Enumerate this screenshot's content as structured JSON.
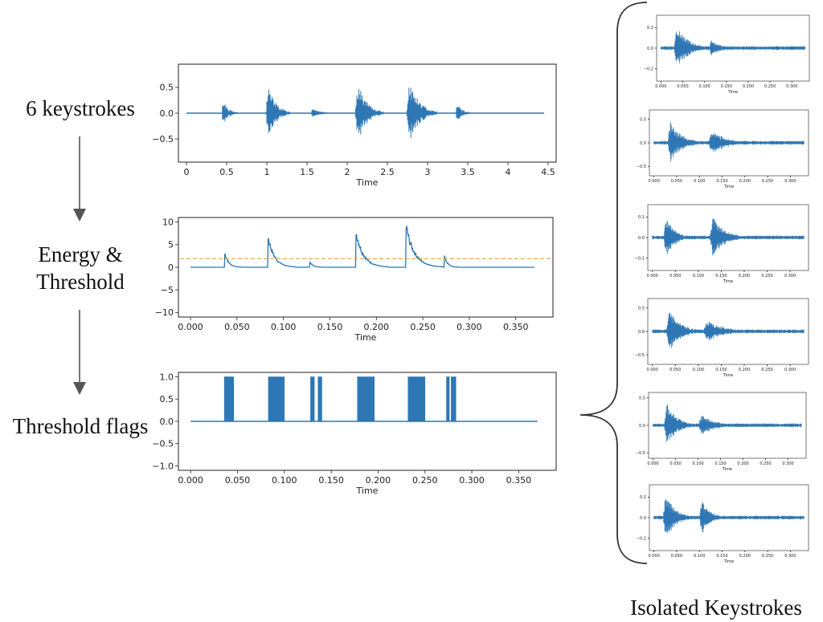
{
  "steps": {
    "keystrokes": "6 keystrokes",
    "energy_line1": "Energy &",
    "energy_line2": "Threshold",
    "flags": "Threshold flags"
  },
  "isolated_title": "Isolated Keystrokes",
  "colors": {
    "signal": "#2f77b4",
    "threshold": "#f0a030",
    "arrow": "#555555",
    "axes": "#222222"
  },
  "chart_data": [
    {
      "type": "line",
      "role": "raw-waveform",
      "xlabel": "Time",
      "xlim": [
        -0.1,
        4.6
      ],
      "ylim": [
        -0.95,
        0.95
      ],
      "xticks": [
        0,
        0.5,
        1,
        1.5,
        2,
        2.5,
        3,
        3.5,
        4,
        4.5
      ],
      "xticklabels": [
        "0",
        "0.5",
        "1",
        "1.5",
        "2",
        "2.5",
        "3",
        "3.5",
        "4",
        "4.5"
      ],
      "yticks": [
        0.5,
        0.0,
        -0.5
      ],
      "yticklabels": [
        "0.5",
        "0.0",
        "−0.5"
      ],
      "signal_span": [
        0,
        4.45
      ],
      "bursts": [
        {
          "start": 0.44,
          "peak": 0.36,
          "width": 0.2
        },
        {
          "start": 0.99,
          "peak": 0.75,
          "width": 0.3
        },
        {
          "start": 1.55,
          "peak": 0.16,
          "width": 0.25
        },
        {
          "start": 2.1,
          "peak": 0.8,
          "width": 0.35
        },
        {
          "start": 2.74,
          "peak": 0.88,
          "width": 0.38
        },
        {
          "start": 3.35,
          "peak": 0.27,
          "width": 0.2
        }
      ]
    },
    {
      "type": "line",
      "role": "energy",
      "xlabel": "Time",
      "xlim": [
        -0.013,
        0.39
      ],
      "ylim": [
        -11,
        11
      ],
      "xticks": [
        0,
        0.05,
        0.1,
        0.15,
        0.2,
        0.25,
        0.3,
        0.35
      ],
      "xticklabels": [
        "0.000",
        "0.050",
        "0.100",
        "0.150",
        "0.200",
        "0.250",
        "0.300",
        "0.350"
      ],
      "yticks": [
        10,
        5,
        0,
        -5,
        -10
      ],
      "yticklabels": [
        "10",
        "5",
        "0",
        "−5",
        "−10"
      ],
      "threshold": 1.9,
      "signal_span": [
        0,
        0.37
      ],
      "bursts": [
        {
          "start": 0.037,
          "peak": 3.5,
          "width": 0.018
        },
        {
          "start": 0.083,
          "peak": 8.3,
          "width": 0.03
        },
        {
          "start": 0.128,
          "peak": 1.5,
          "width": 0.015
        },
        {
          "start": 0.178,
          "peak": 9.1,
          "width": 0.035
        },
        {
          "start": 0.232,
          "peak": 10.2,
          "width": 0.04
        },
        {
          "start": 0.273,
          "peak": 3.0,
          "width": 0.015
        }
      ]
    },
    {
      "type": "line",
      "role": "threshold-flags",
      "xlabel": "Time",
      "xlim": [
        -0.013,
        0.39
      ],
      "ylim": [
        -1.1,
        1.1
      ],
      "xticks": [
        0,
        0.05,
        0.1,
        0.15,
        0.2,
        0.25,
        0.3,
        0.35
      ],
      "xticklabels": [
        "0.000",
        "0.050",
        "0.100",
        "0.150",
        "0.200",
        "0.250",
        "0.300",
        "0.350"
      ],
      "yticks": [
        1.0,
        0.5,
        0.0,
        -0.5,
        -1.0
      ],
      "yticklabels": [
        "1.0",
        "0.5",
        "0.0",
        "−0.5",
        "−1.0"
      ],
      "signal_span": [
        0,
        0.37
      ],
      "flag_intervals": [
        [
          0.036,
          0.046
        ],
        [
          0.083,
          0.1
        ],
        [
          0.128,
          0.132
        ],
        [
          0.136,
          0.14
        ],
        [
          0.178,
          0.196
        ],
        [
          0.232,
          0.25
        ],
        [
          0.273,
          0.276
        ],
        [
          0.278,
          0.283
        ]
      ]
    },
    {
      "type": "line",
      "role": "isolated-keystroke-1",
      "xlabel": "Time",
      "xlim": [
        -0.01,
        0.34
      ],
      "ylim": [
        -0.32,
        0.32
      ],
      "xticks": [
        0,
        0.05,
        0.1,
        0.15,
        0.2,
        0.25,
        0.3
      ],
      "xticklabels": [
        "0.000",
        "0.050",
        "0.100",
        "0.150",
        "0.200",
        "0.250",
        "0.300"
      ],
      "yticks": [
        0.2,
        0.0,
        -0.2
      ],
      "yticklabels": [
        "0.2",
        "0.0",
        "−0.2"
      ],
      "signal_span": [
        0,
        0.33
      ],
      "bursts": [
        {
          "start": 0.03,
          "peak": 0.3,
          "width": 0.08
        },
        {
          "start": 0.11,
          "peak": 0.1,
          "width": 0.07
        }
      ]
    },
    {
      "type": "line",
      "role": "isolated-keystroke-2",
      "xlabel": "Time",
      "xlim": [
        -0.01,
        0.34
      ],
      "ylim": [
        -0.7,
        0.7
      ],
      "xticks": [
        0,
        0.05,
        0.1,
        0.15,
        0.2,
        0.25,
        0.3
      ],
      "xticklabels": [
        "0.000",
        "0.050",
        "0.100",
        "0.150",
        "0.200",
        "0.250",
        "0.300"
      ],
      "yticks": [
        0.5,
        0.0,
        -0.5
      ],
      "yticklabels": [
        "0.5",
        "0.0",
        "−0.5"
      ],
      "signal_span": [
        0,
        0.33
      ],
      "bursts": [
        {
          "start": 0.03,
          "peak": 0.6,
          "width": 0.08
        },
        {
          "start": 0.12,
          "peak": 0.35,
          "width": 0.1
        }
      ]
    },
    {
      "type": "line",
      "role": "isolated-keystroke-3",
      "xlabel": "Time",
      "xlim": [
        -0.01,
        0.34
      ],
      "ylim": [
        -0.16,
        0.16
      ],
      "xticks": [
        0,
        0.05,
        0.1,
        0.15,
        0.2,
        0.25,
        0.3
      ],
      "xticklabels": [
        "0.000",
        "0.050",
        "0.100",
        "0.150",
        "0.200",
        "0.250",
        "0.300"
      ],
      "yticks": [
        0.1,
        0.0,
        -0.1
      ],
      "yticklabels": [
        "0.1",
        "0.0",
        "−0.1"
      ],
      "signal_span": [
        0,
        0.33
      ],
      "bursts": [
        {
          "start": 0.025,
          "peak": 0.13,
          "width": 0.06
        },
        {
          "start": 0.125,
          "peak": 0.14,
          "width": 0.08
        }
      ]
    },
    {
      "type": "line",
      "role": "isolated-keystroke-4",
      "xlabel": "Time",
      "xlim": [
        -0.01,
        0.34
      ],
      "ylim": [
        -0.7,
        0.7
      ],
      "xticks": [
        0,
        0.05,
        0.1,
        0.15,
        0.2,
        0.25,
        0.3
      ],
      "xticklabels": [
        "0.000",
        "0.050",
        "0.100",
        "0.150",
        "0.200",
        "0.250",
        "0.300"
      ],
      "yticks": [
        0.5,
        0.0,
        -0.5
      ],
      "yticklabels": [
        "0.5",
        "0.0",
        "−0.5"
      ],
      "signal_span": [
        0,
        0.33
      ],
      "bursts": [
        {
          "start": 0.03,
          "peak": 0.6,
          "width": 0.08
        },
        {
          "start": 0.11,
          "peak": 0.3,
          "width": 0.12
        }
      ]
    },
    {
      "type": "line",
      "role": "isolated-keystroke-5",
      "xlabel": "Time",
      "xlim": [
        -0.01,
        0.34
      ],
      "ylim": [
        -0.6,
        0.6
      ],
      "xticks": [
        0,
        0.05,
        0.1,
        0.15,
        0.2,
        0.25,
        0.3
      ],
      "xticklabels": [
        "0.000",
        "0.050",
        "0.100",
        "0.150",
        "0.200",
        "0.250",
        "0.300"
      ],
      "yticks": [
        0.5,
        0.0,
        -0.5
      ],
      "yticklabels": [
        "0.5",
        "0.0",
        "−0.5"
      ],
      "signal_span": [
        0,
        0.33
      ],
      "bursts": [
        {
          "start": 0.025,
          "peak": 0.55,
          "width": 0.07
        },
        {
          "start": 0.1,
          "peak": 0.25,
          "width": 0.1
        }
      ]
    },
    {
      "type": "line",
      "role": "isolated-keystroke-6",
      "xlabel": "Time",
      "xlim": [
        -0.01,
        0.34
      ],
      "ylim": [
        -0.32,
        0.32
      ],
      "xticks": [
        0,
        0.05,
        0.1,
        0.15,
        0.2,
        0.25,
        0.3
      ],
      "xticklabels": [
        "0.000",
        "0.050",
        "0.100",
        "0.150",
        "0.200",
        "0.250",
        "0.300"
      ],
      "yticks": [
        0.2,
        0.0,
        -0.2
      ],
      "yticklabels": [
        "0.2",
        "0.0",
        "−0.2"
      ],
      "signal_span": [
        0,
        0.33
      ],
      "bursts": [
        {
          "start": 0.02,
          "peak": 0.3,
          "width": 0.07
        },
        {
          "start": 0.1,
          "peak": 0.22,
          "width": 0.06
        }
      ]
    }
  ]
}
